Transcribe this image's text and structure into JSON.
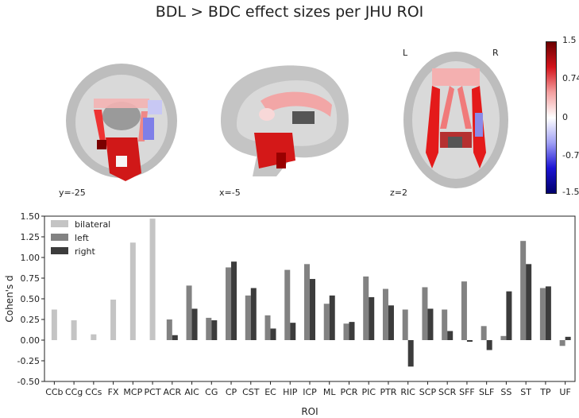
{
  "title": "BDL > BDC effect sizes per JHU ROI",
  "brain_views": {
    "coronal": {
      "coord_label": "y=-25"
    },
    "sagittal": {
      "coord_label": "x=-5"
    },
    "axial": {
      "coord_label": "z=2",
      "left_label": "L",
      "right_label": "R"
    }
  },
  "colorbar": {
    "ticks": [
      "1.5",
      "0.74",
      "0",
      "-0.74",
      "-1.5"
    ],
    "colors": [
      "#6b0000",
      "#d4141c",
      "#f4a0a0",
      "#ffffff",
      "#a0a0f4",
      "#1c14d4",
      "#00006b"
    ]
  },
  "chart_data": {
    "type": "bar",
    "xlabel": "ROI",
    "ylabel": "Cohen's d",
    "ylim": [
      -0.5,
      1.5
    ],
    "yticks": [
      "1.50",
      "1.25",
      "1.00",
      "0.75",
      "0.50",
      "0.25",
      "0.00",
      "-0.25",
      "-0.50"
    ],
    "categories": [
      "CCb",
      "CCg",
      "CCs",
      "FX",
      "MCP",
      "PCT",
      "ACR",
      "AIC",
      "CG",
      "CP",
      "CST",
      "EC",
      "HIP",
      "ICP",
      "ML",
      "PCR",
      "PIC",
      "PTR",
      "RIC",
      "SCP",
      "SCR",
      "SFF",
      "SLF",
      "SS",
      "ST",
      "TP",
      "UF"
    ],
    "legend_position": "top-left",
    "series": [
      {
        "name": "bilateral",
        "color": "#c4c4c4",
        "values": [
          0.37,
          0.24,
          0.07,
          0.49,
          1.18,
          1.47,
          null,
          null,
          null,
          null,
          null,
          null,
          null,
          null,
          null,
          null,
          null,
          null,
          null,
          null,
          null,
          null,
          null,
          null,
          null,
          null,
          null
        ]
      },
      {
        "name": "left",
        "color": "#828282",
        "values": [
          null,
          null,
          null,
          null,
          null,
          null,
          0.25,
          0.66,
          0.27,
          0.88,
          0.54,
          0.3,
          0.85,
          0.92,
          0.44,
          0.2,
          0.77,
          0.62,
          0.37,
          0.64,
          0.37,
          0.71,
          0.17,
          0.05,
          1.2,
          0.63,
          -0.07
        ]
      },
      {
        "name": "right",
        "color": "#3c3c3c",
        "values": [
          null,
          null,
          null,
          null,
          null,
          null,
          0.06,
          0.38,
          0.24,
          0.95,
          0.63,
          0.14,
          0.21,
          0.74,
          0.54,
          0.22,
          0.52,
          0.42,
          -0.32,
          0.38,
          0.11,
          -0.02,
          -0.12,
          0.59,
          0.92,
          0.65,
          0.04
        ]
      }
    ]
  }
}
